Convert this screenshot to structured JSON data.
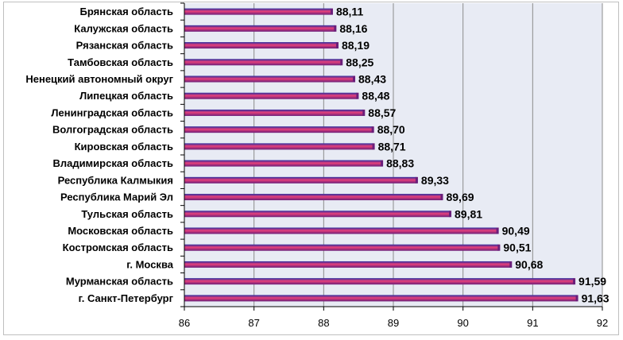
{
  "chart_data": {
    "type": "bar",
    "orientation": "horizontal",
    "title": "",
    "xlabel": "",
    "ylabel": "",
    "categories": [
      "Брянская область",
      "Калужская область",
      "Рязанская область",
      "Тамбовская область",
      "Ненецкий автономный округ",
      "Липецкая область",
      "Ленинградская область",
      "Волгоградская область",
      "Кировская область",
      "Владимирская область",
      "Республика Калмыкия",
      "Республика Марий Эл",
      "Тульская область",
      "Московская область",
      "Костромская область",
      "г. Москва",
      "Мурманская область",
      "г. Санкт-Петербург"
    ],
    "values": [
      88.11,
      88.16,
      88.19,
      88.25,
      88.43,
      88.48,
      88.57,
      88.7,
      88.71,
      88.83,
      89.33,
      89.69,
      89.81,
      90.49,
      90.51,
      90.68,
      91.59,
      91.63
    ],
    "value_labels": [
      "88,11",
      "88,16",
      "88,19",
      "88,25",
      "88,43",
      "88,48",
      "88,57",
      "88,70",
      "88,71",
      "88,83",
      "89,33",
      "89,69",
      "89,81",
      "90,49",
      "90,51",
      "90,68",
      "91,59",
      "91,63"
    ],
    "xlim": [
      86,
      92
    ],
    "ticks": [
      86,
      87,
      88,
      89,
      90,
      91,
      92
    ],
    "tick_labels": [
      "86",
      "87",
      "88",
      "89",
      "90",
      "91",
      "92"
    ],
    "grid": true,
    "legend": "none",
    "colors": {
      "bar_top": "#2b2b9e",
      "bar_mid": "#e8407a",
      "bar_bottom": "#6a1e7a",
      "plot_background": "#e8ebf4",
      "gridline": "#8c8c8c"
    }
  }
}
